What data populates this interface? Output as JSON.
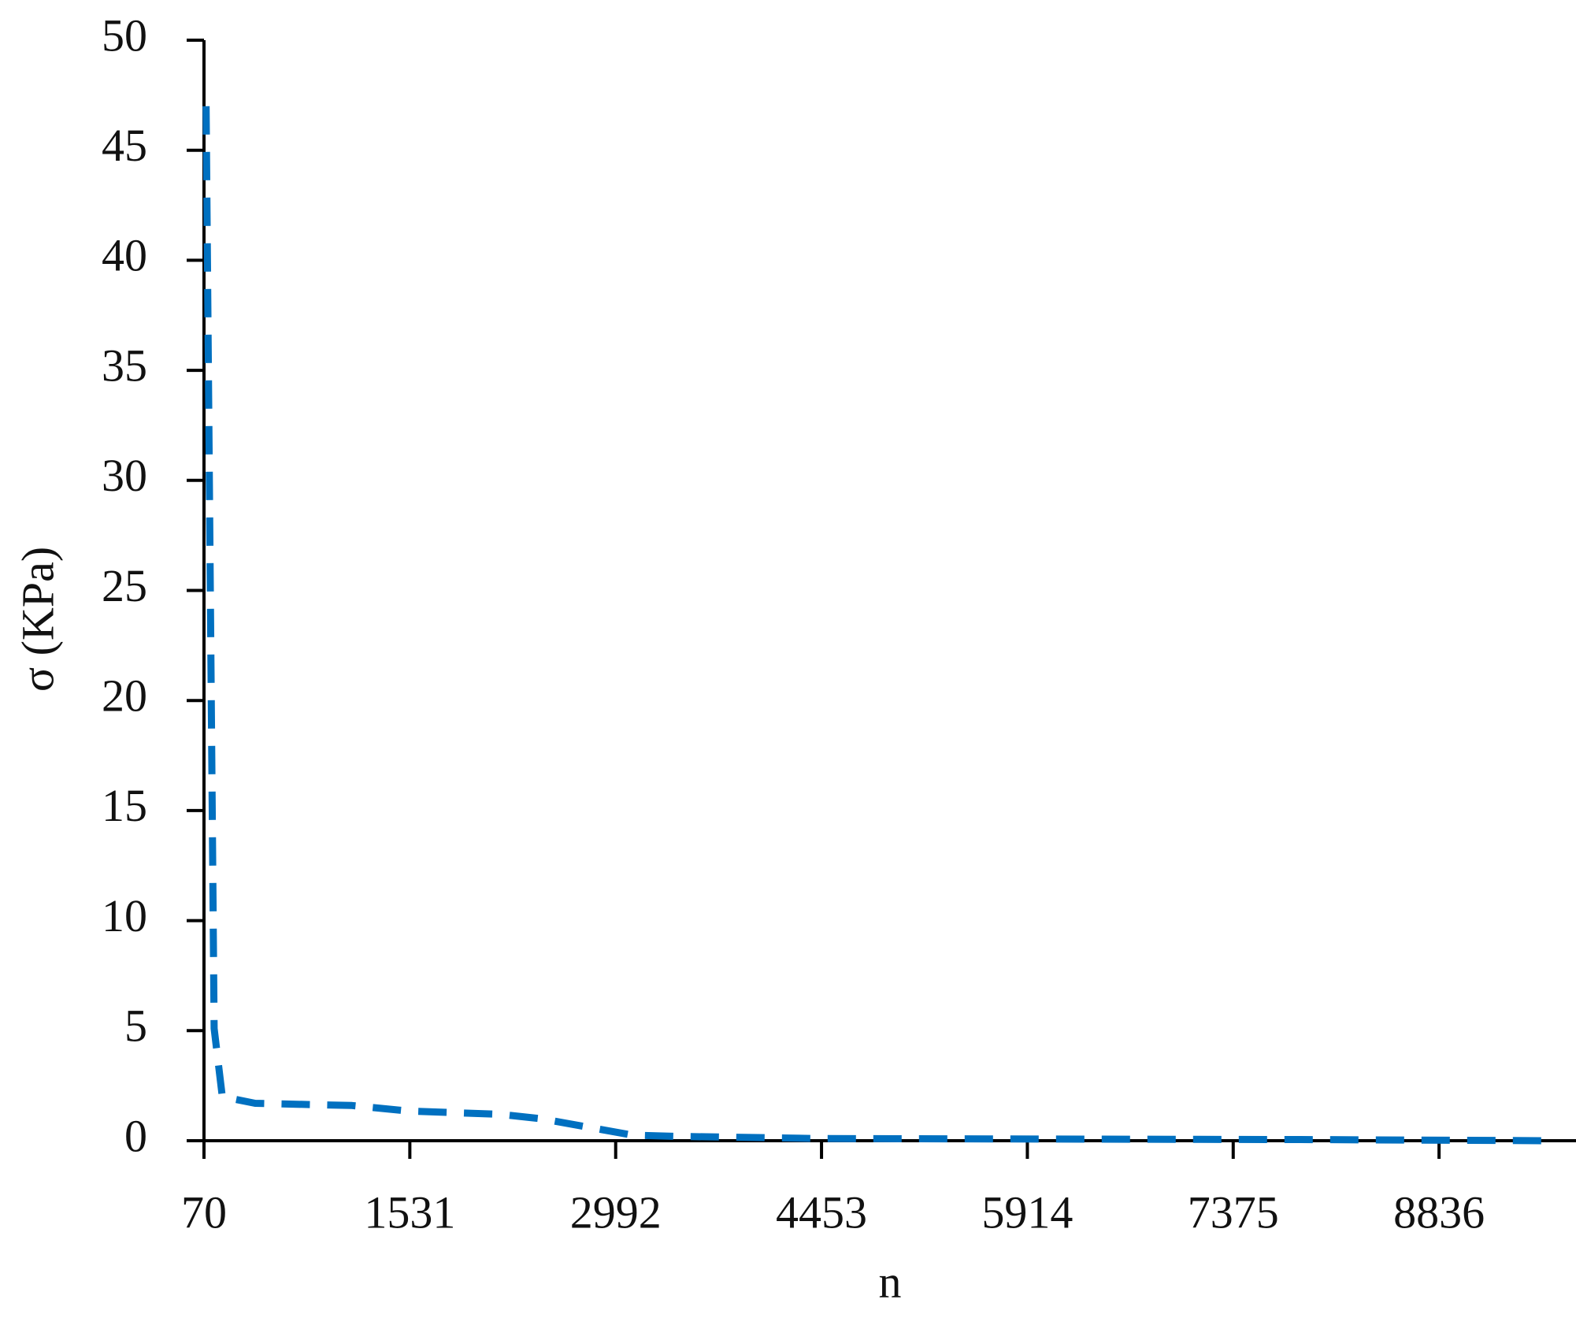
{
  "chart_data": {
    "type": "line",
    "x_label": "n",
    "y_label": "σ (KPa)",
    "x": [
      85,
      142,
      200,
      433,
      1121,
      1520,
      2173,
      2463,
      3116,
      3406,
      4421,
      7997,
      9605
    ],
    "series": [
      {
        "name": "σ",
        "color": "#0070c0",
        "dashed": true,
        "values": [
          47.0,
          5.1,
          2.0,
          1.7,
          1.6,
          1.35,
          1.2,
          1.0,
          0.25,
          0.2,
          0.1,
          0.05,
          0.0
        ]
      }
    ],
    "xlim": [
      70,
      9808
    ],
    "xticks": [
      70,
      1531,
      2992,
      4453,
      5914,
      7375,
      8836
    ],
    "ylim": [
      0,
      50
    ],
    "yticks": [
      0,
      5,
      10,
      15,
      20,
      25,
      30,
      35,
      40,
      45,
      50
    ],
    "grid": false
  }
}
